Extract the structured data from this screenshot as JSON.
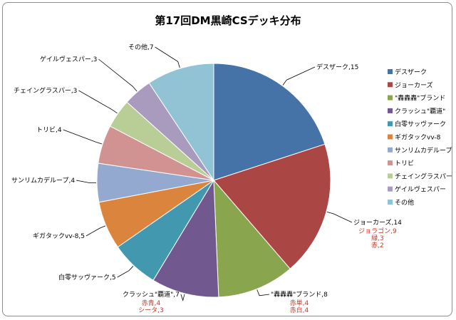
{
  "chart_data": {
    "type": "pie",
    "title": "第17回DM黒崎CSデッキ分布",
    "slices": [
      {
        "name": "デスザーク",
        "label": "デスザーク,15",
        "value": 15,
        "color": "#4572a7",
        "notes": []
      },
      {
        "name": "ジョーカーズ",
        "label": "ジョーカーズ,14",
        "value": 14,
        "color": "#aa4643",
        "notes": [
          "ジョラゴン,9",
          "緑,3",
          "赤,2"
        ]
      },
      {
        "name": "\"轟轟轟\"ブランド",
        "label": "\"轟轟轟\"ブランド,8",
        "value": 8,
        "color": "#89a54e",
        "notes": [
          "赤単,4",
          "赤白,4"
        ]
      },
      {
        "name": "クラッシュ\"覇道\"",
        "label": "クラッシュ\"覇道\",7",
        "value": 7,
        "color": "#71588f",
        "notes": [
          "赤青,4",
          "シータ,3"
        ]
      },
      {
        "name": "白零サッヴァーク",
        "label": "白零サッヴァーク,5",
        "value": 5,
        "color": "#4198af",
        "notes": []
      },
      {
        "name": "ギガタックvv-8",
        "label": "ギガタックvv-8,5",
        "value": 5,
        "color": "#db843d",
        "notes": []
      },
      {
        "name": "サンリムカデループ",
        "label": "サンリムカデループ,4",
        "value": 4,
        "color": "#93a9cf",
        "notes": []
      },
      {
        "name": "トリビ",
        "label": "トリビ,4",
        "value": 4,
        "color": "#d19392",
        "notes": []
      },
      {
        "name": "チェイングラスパー",
        "label": "チェイングラスパー,3",
        "value": 3,
        "color": "#b9cd96",
        "notes": []
      },
      {
        "name": "ゲイルヴェスパー",
        "label": "ゲイルヴェスパー,3",
        "value": 3,
        "color": "#a99bbd",
        "notes": []
      },
      {
        "name": "その他",
        "label": "その他,7",
        "value": 7,
        "color": "#92c3d4",
        "notes": []
      }
    ],
    "legend_position": "right",
    "start_angle": "top",
    "direction": "clockwise"
  },
  "colors": {
    "note_text": "#c0392b",
    "leader_line": "#000000",
    "slice_border": "#ffffff"
  }
}
